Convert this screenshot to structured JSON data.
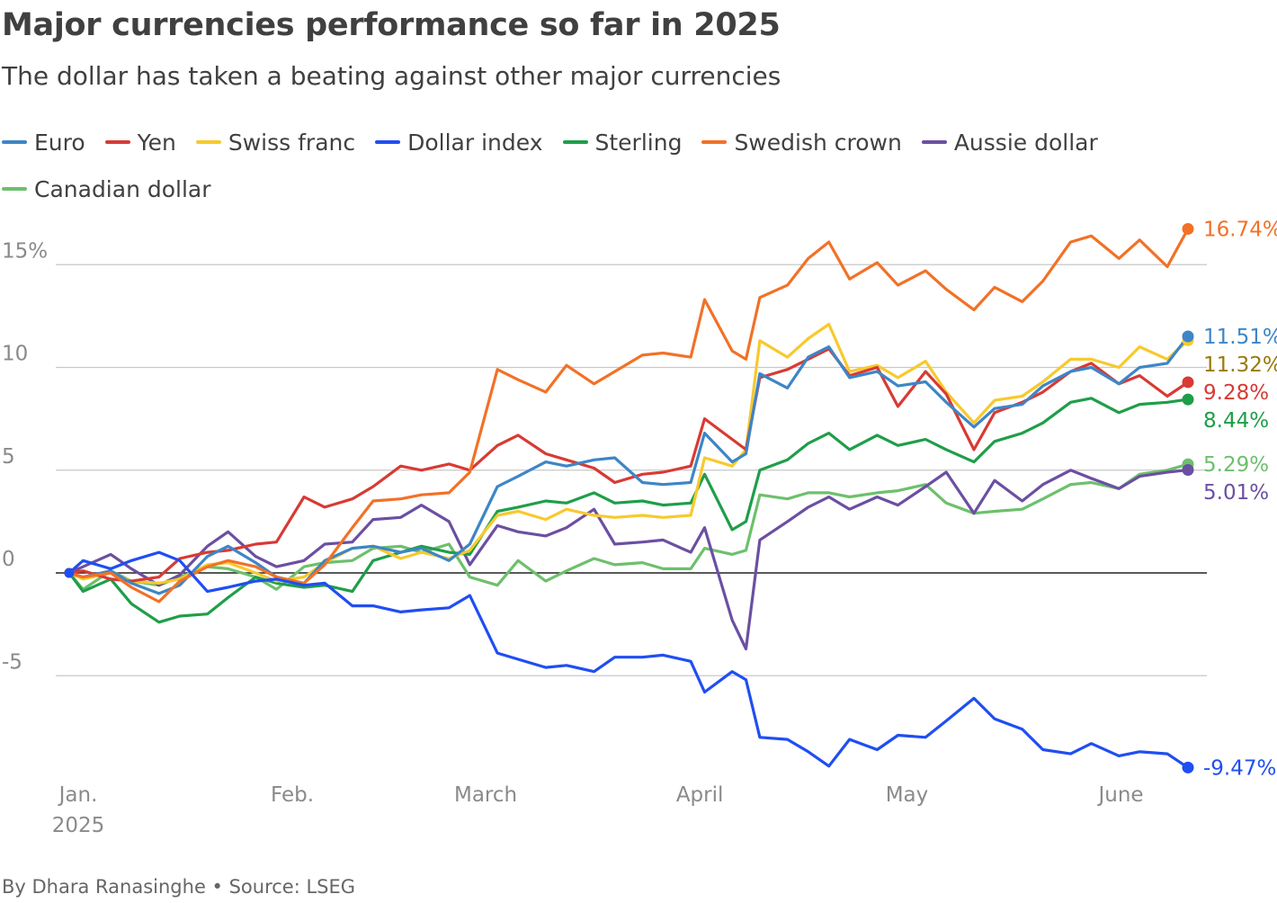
{
  "title": "Major currencies performance so far in 2025",
  "subtitle": "The dollar has taken a beating against other major currencies",
  "byline": "By Dhara Ranasinghe • Source: LSEG",
  "chart_data": {
    "type": "line",
    "title": "Major currencies performance so far in 2025",
    "subtitle": "The dollar has taken a beating against other major currencies",
    "xlabel": "",
    "ylabel": "",
    "y_unit": "%",
    "ylim": [
      -10,
      17
    ],
    "yticks": [
      -5,
      0,
      5,
      10,
      15
    ],
    "ytick_labels": [
      "-5",
      "0",
      "5",
      "10",
      "15%"
    ],
    "x_start": "2025-01-01",
    "xlim": [
      "2025-01-01",
      "2025-06-12"
    ],
    "xticks": [
      {
        "date": "2025-01-01",
        "label": "Jan.",
        "sublabel": "2025"
      },
      {
        "date": "2025-02-01",
        "label": "Feb.",
        "sublabel": ""
      },
      {
        "date": "2025-03-01",
        "label": "March",
        "sublabel": ""
      },
      {
        "date": "2025-04-01",
        "label": "April",
        "sublabel": ""
      },
      {
        "date": "2025-05-01",
        "label": "May",
        "sublabel": ""
      },
      {
        "date": "2025-06-01",
        "label": "June",
        "sublabel": ""
      }
    ],
    "grid": true,
    "legend_position": "top",
    "zero_line": true,
    "dates": [
      "2025-01-01",
      "2025-01-03",
      "2025-01-07",
      "2025-01-10",
      "2025-01-14",
      "2025-01-17",
      "2025-01-21",
      "2025-01-24",
      "2025-01-28",
      "2025-01-31",
      "2025-02-04",
      "2025-02-07",
      "2025-02-11",
      "2025-02-14",
      "2025-02-18",
      "2025-02-21",
      "2025-02-25",
      "2025-02-28",
      "2025-03-04",
      "2025-03-07",
      "2025-03-11",
      "2025-03-14",
      "2025-03-18",
      "2025-03-21",
      "2025-03-25",
      "2025-03-28",
      "2025-04-01",
      "2025-04-03",
      "2025-04-07",
      "2025-04-09",
      "2025-04-11",
      "2025-04-15",
      "2025-04-18",
      "2025-04-21",
      "2025-04-24",
      "2025-04-28",
      "2025-05-01",
      "2025-05-05",
      "2025-05-08",
      "2025-05-12",
      "2025-05-15",
      "2025-05-19",
      "2025-05-22",
      "2025-05-26",
      "2025-05-29",
      "2025-06-02",
      "2025-06-05",
      "2025-06-09",
      "2025-06-12"
    ],
    "series": [
      {
        "name": "Euro",
        "color": "#3d86c6",
        "end_label": "11.51%",
        "values": [
          0,
          -0.2,
          0.1,
          -0.5,
          -1.0,
          -0.6,
          0.8,
          1.3,
          0.5,
          -0.2,
          -0.5,
          0.6,
          1.2,
          1.3,
          1.0,
          1.2,
          0.6,
          1.4,
          4.2,
          4.7,
          5.4,
          5.2,
          5.5,
          5.6,
          4.4,
          4.3,
          4.4,
          6.8,
          5.4,
          5.8,
          9.7,
          9.0,
          10.5,
          11.0,
          9.5,
          9.8,
          9.1,
          9.3,
          8.3,
          7.1,
          8.0,
          8.2,
          9.1,
          9.8,
          10.0,
          9.2,
          10.0,
          10.2,
          11.51
        ]
      },
      {
        "name": "Yen",
        "color": "#d83a34",
        "end_label": "9.28%",
        "values": [
          0,
          0.1,
          -0.3,
          -0.4,
          -0.2,
          0.7,
          1.0,
          1.1,
          1.4,
          1.5,
          3.7,
          3.2,
          3.6,
          4.2,
          5.2,
          5.0,
          5.3,
          5.0,
          6.2,
          6.7,
          5.8,
          5.5,
          5.1,
          4.4,
          4.8,
          4.9,
          5.2,
          7.5,
          6.5,
          6.0,
          9.5,
          9.9,
          10.4,
          10.9,
          9.6,
          10.0,
          8.1,
          9.8,
          8.7,
          6.0,
          7.8,
          8.3,
          8.8,
          9.8,
          10.2,
          9.2,
          9.6,
          8.6,
          9.28
        ]
      },
      {
        "name": "Swiss franc",
        "color": "#f8c92d",
        "end_label": "11.32%",
        "values": [
          0,
          -0.3,
          0.0,
          -0.4,
          -0.5,
          -0.3,
          0.4,
          0.5,
          0.0,
          -0.4,
          -0.2,
          0.5,
          1.2,
          1.3,
          0.7,
          1.0,
          0.7,
          1.1,
          2.8,
          3.0,
          2.6,
          3.1,
          2.8,
          2.7,
          2.8,
          2.7,
          2.8,
          5.6,
          5.2,
          6.0,
          11.3,
          10.5,
          11.4,
          12.1,
          9.8,
          10.1,
          9.5,
          10.3,
          8.8,
          7.3,
          8.4,
          8.6,
          9.3,
          10.4,
          10.4,
          10.0,
          11.0,
          10.4,
          11.32
        ]
      },
      {
        "name": "Dollar index",
        "color": "#1f4ef2",
        "end_label": "-9.47%",
        "values": [
          0,
          0.6,
          0.2,
          0.6,
          1.0,
          0.6,
          -0.9,
          -0.7,
          -0.4,
          -0.3,
          -0.6,
          -0.5,
          -1.6,
          -1.6,
          -1.9,
          -1.8,
          -1.7,
          -1.1,
          -3.9,
          -4.2,
          -4.6,
          -4.5,
          -4.8,
          -4.1,
          -4.1,
          -4.0,
          -4.3,
          -5.8,
          -4.8,
          -5.2,
          -8.0,
          -8.1,
          -8.7,
          -9.4,
          -8.1,
          -8.6,
          -7.9,
          -8.0,
          -7.2,
          -6.1,
          -7.1,
          -7.6,
          -8.6,
          -8.8,
          -8.3,
          -8.9,
          -8.7,
          -8.8,
          -9.47
        ]
      },
      {
        "name": "Sterling",
        "color": "#1f9e49",
        "end_label": "8.44%",
        "values": [
          0,
          -0.9,
          -0.3,
          -1.5,
          -2.4,
          -2.1,
          -2.0,
          -1.2,
          -0.2,
          -0.5,
          -0.7,
          -0.6,
          -0.9,
          0.6,
          1.0,
          1.3,
          1.0,
          0.9,
          3.0,
          3.2,
          3.5,
          3.4,
          3.9,
          3.4,
          3.5,
          3.3,
          3.4,
          4.8,
          2.1,
          2.5,
          5.0,
          5.5,
          6.3,
          6.8,
          6.0,
          6.7,
          6.2,
          6.5,
          6.0,
          5.4,
          6.4,
          6.8,
          7.3,
          8.3,
          8.5,
          7.8,
          8.2,
          8.3,
          8.44
        ]
      },
      {
        "name": "Swedish crown",
        "color": "#f27127",
        "end_label": "16.74%",
        "values": [
          0,
          -0.2,
          0.0,
          -0.7,
          -1.4,
          -0.4,
          0.3,
          0.6,
          0.3,
          -0.2,
          -0.5,
          0.4,
          2.2,
          3.5,
          3.6,
          3.8,
          3.9,
          4.9,
          9.9,
          9.4,
          8.8,
          10.1,
          9.2,
          9.8,
          10.6,
          10.7,
          10.5,
          13.3,
          10.8,
          10.4,
          13.4,
          14.0,
          15.3,
          16.1,
          14.3,
          15.1,
          14.0,
          14.7,
          13.8,
          12.8,
          13.9,
          13.2,
          14.2,
          16.1,
          16.4,
          15.3,
          16.2,
          14.9,
          16.74
        ]
      },
      {
        "name": "Aussie dollar",
        "color": "#6b4fa2",
        "end_label": "5.01%",
        "values": [
          0,
          0.3,
          0.9,
          0.2,
          -0.6,
          -0.1,
          1.3,
          2.0,
          0.8,
          0.3,
          0.6,
          1.4,
          1.5,
          2.6,
          2.7,
          3.3,
          2.5,
          0.4,
          2.3,
          2.0,
          1.8,
          2.2,
          3.1,
          1.4,
          1.5,
          1.6,
          1.0,
          2.2,
          -2.3,
          -3.7,
          1.6,
          2.5,
          3.2,
          3.7,
          3.1,
          3.7,
          3.3,
          4.2,
          4.9,
          2.9,
          4.5,
          3.5,
          4.3,
          5.0,
          4.6,
          4.1,
          4.7,
          4.9,
          5.01
        ]
      },
      {
        "name": "Canadian dollar",
        "color": "#6dc06c",
        "end_label": "5.29%",
        "values": [
          0,
          -0.8,
          0.1,
          -0.4,
          -0.6,
          -0.2,
          0.3,
          0.2,
          -0.2,
          -0.8,
          0.3,
          0.5,
          0.6,
          1.2,
          1.3,
          1.0,
          1.4,
          -0.2,
          -0.6,
          0.6,
          -0.4,
          0.1,
          0.7,
          0.4,
          0.5,
          0.2,
          0.2,
          1.2,
          0.9,
          1.1,
          3.8,
          3.6,
          3.9,
          3.9,
          3.7,
          3.9,
          4.0,
          4.3,
          3.4,
          2.9,
          3.0,
          3.1,
          3.6,
          4.3,
          4.4,
          4.1,
          4.8,
          5.0,
          5.29
        ]
      }
    ],
    "label_order_top_to_bottom": [
      "Swedish crown",
      "Euro",
      "Swiss franc",
      "Yen",
      "Sterling",
      "Canadian dollar",
      "Aussie dollar",
      "Dollar index"
    ]
  }
}
